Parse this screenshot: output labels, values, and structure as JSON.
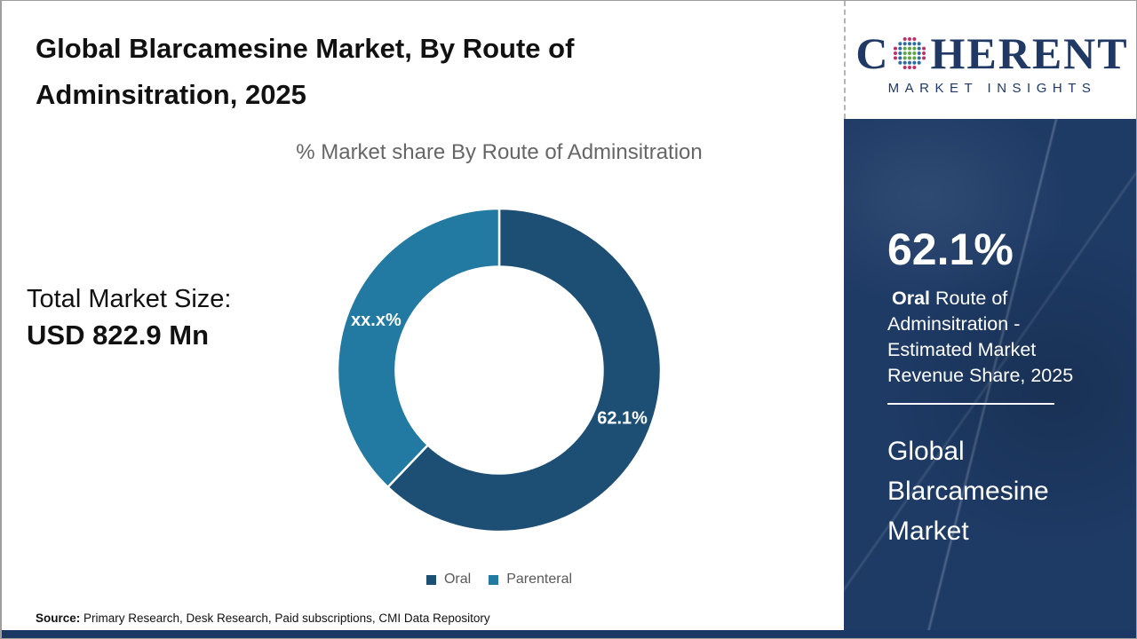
{
  "header": {
    "title": "Global Blarcamesine Market, By Route of Adminsitration, 2025"
  },
  "logo": {
    "word_start": "C",
    "word_end": "HERENT",
    "subtitle": "MARKET INSIGHTS",
    "navy": "#1f3864",
    "dot_green": "#5ba746",
    "dot_blue": "#2e6da4",
    "dot_magenta": "#bf3069",
    "globe_icon": "dot-globe-icon"
  },
  "left_panel": {
    "total_label": "Total Market Size:",
    "total_value": "USD 822.9 Mn"
  },
  "chart_data": {
    "type": "pie",
    "subtype": "donut",
    "title": "% Market share By Route of Adminsitration",
    "slices": [
      {
        "name": "Oral",
        "value": 62.1,
        "label": "62.1%",
        "color": "#1d4e74"
      },
      {
        "name": "Parenteral",
        "value": 37.9,
        "label": "xx.x%",
        "color": "#2279a2"
      }
    ],
    "start_angle_deg": 0,
    "inner_radius_ratio": 0.64,
    "slice_gap_color": "#ffffff",
    "label_color": "#ffffff",
    "legend_position": "bottom"
  },
  "sidebar": {
    "background_color": "#1e3b66",
    "stat_value": "62.1%",
    "desc_bold": "Oral",
    "desc_rest": " Route of Adminsitration - Estimated Market Revenue Share, 2025",
    "market_name": "Global Blarcamesine Market"
  },
  "footer": {
    "source_label": "Source:",
    "source_text": " Primary Research, Desk Research, Paid subscriptions, CMI Data Repository",
    "bar_color": "#1b3865"
  }
}
